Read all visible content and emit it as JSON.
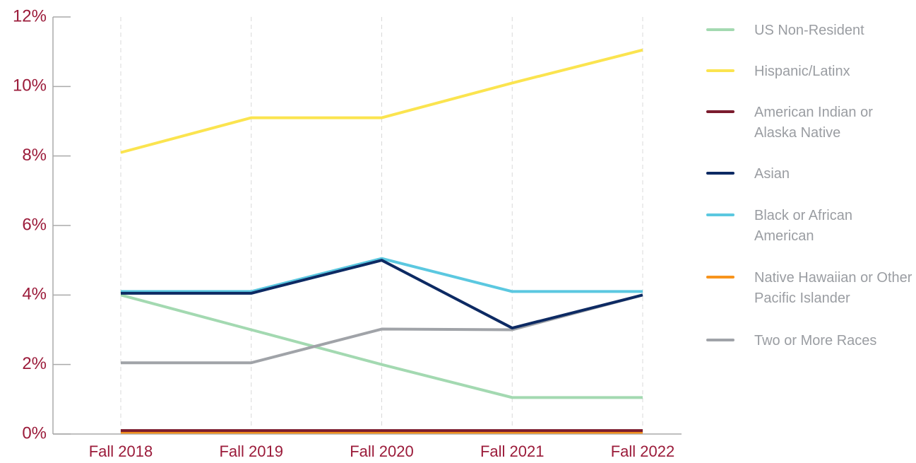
{
  "chart_data": {
    "type": "line",
    "categories": [
      "Fall 2018",
      "Fall 2019",
      "Fall 2020",
      "Fall 2021",
      "Fall 2022"
    ],
    "series": [
      {
        "name": "US Non-Resident",
        "color": "#a3d9b1",
        "values": [
          4,
          3,
          2,
          1.05,
          1.05
        ]
      },
      {
        "name": "Hispanic/Latinx",
        "color": "#fbe44f",
        "values": [
          8.1,
          9.1,
          9.1,
          10.1,
          11.05
        ]
      },
      {
        "name": "American Indian or Alaska Native",
        "color": "#7b1c2e",
        "values": [
          0.1,
          0.1,
          0.1,
          0.1,
          0.1
        ]
      },
      {
        "name": "Asian",
        "color": "#0d2a63",
        "values": [
          4.05,
          4.05,
          5.0,
          3.05,
          4.0
        ]
      },
      {
        "name": "Black or African American",
        "color": "#5bc8e0",
        "values": [
          4.1,
          4.1,
          5.05,
          4.1,
          4.1
        ]
      },
      {
        "name": "Native Hawaiian or Other Pacific Islander",
        "color": "#f7941d",
        "values": [
          0.05,
          0.05,
          0.05,
          0.05,
          0.05
        ]
      },
      {
        "name": "Two or More Races",
        "color": "#a0a3a8",
        "values": [
          2.05,
          2.05,
          3.02,
          3.0,
          4.0
        ]
      }
    ],
    "ylim": [
      0,
      12
    ],
    "yticks": [
      {
        "value": 0,
        "label": "0%"
      },
      {
        "value": 2,
        "label": "2%"
      },
      {
        "value": 4,
        "label": "4%"
      },
      {
        "value": 6,
        "label": "6%"
      },
      {
        "value": 8,
        "label": "8%"
      },
      {
        "value": 10,
        "label": "10%"
      },
      {
        "value": 12,
        "label": "12%"
      }
    ],
    "legend": "right",
    "grid": true
  }
}
